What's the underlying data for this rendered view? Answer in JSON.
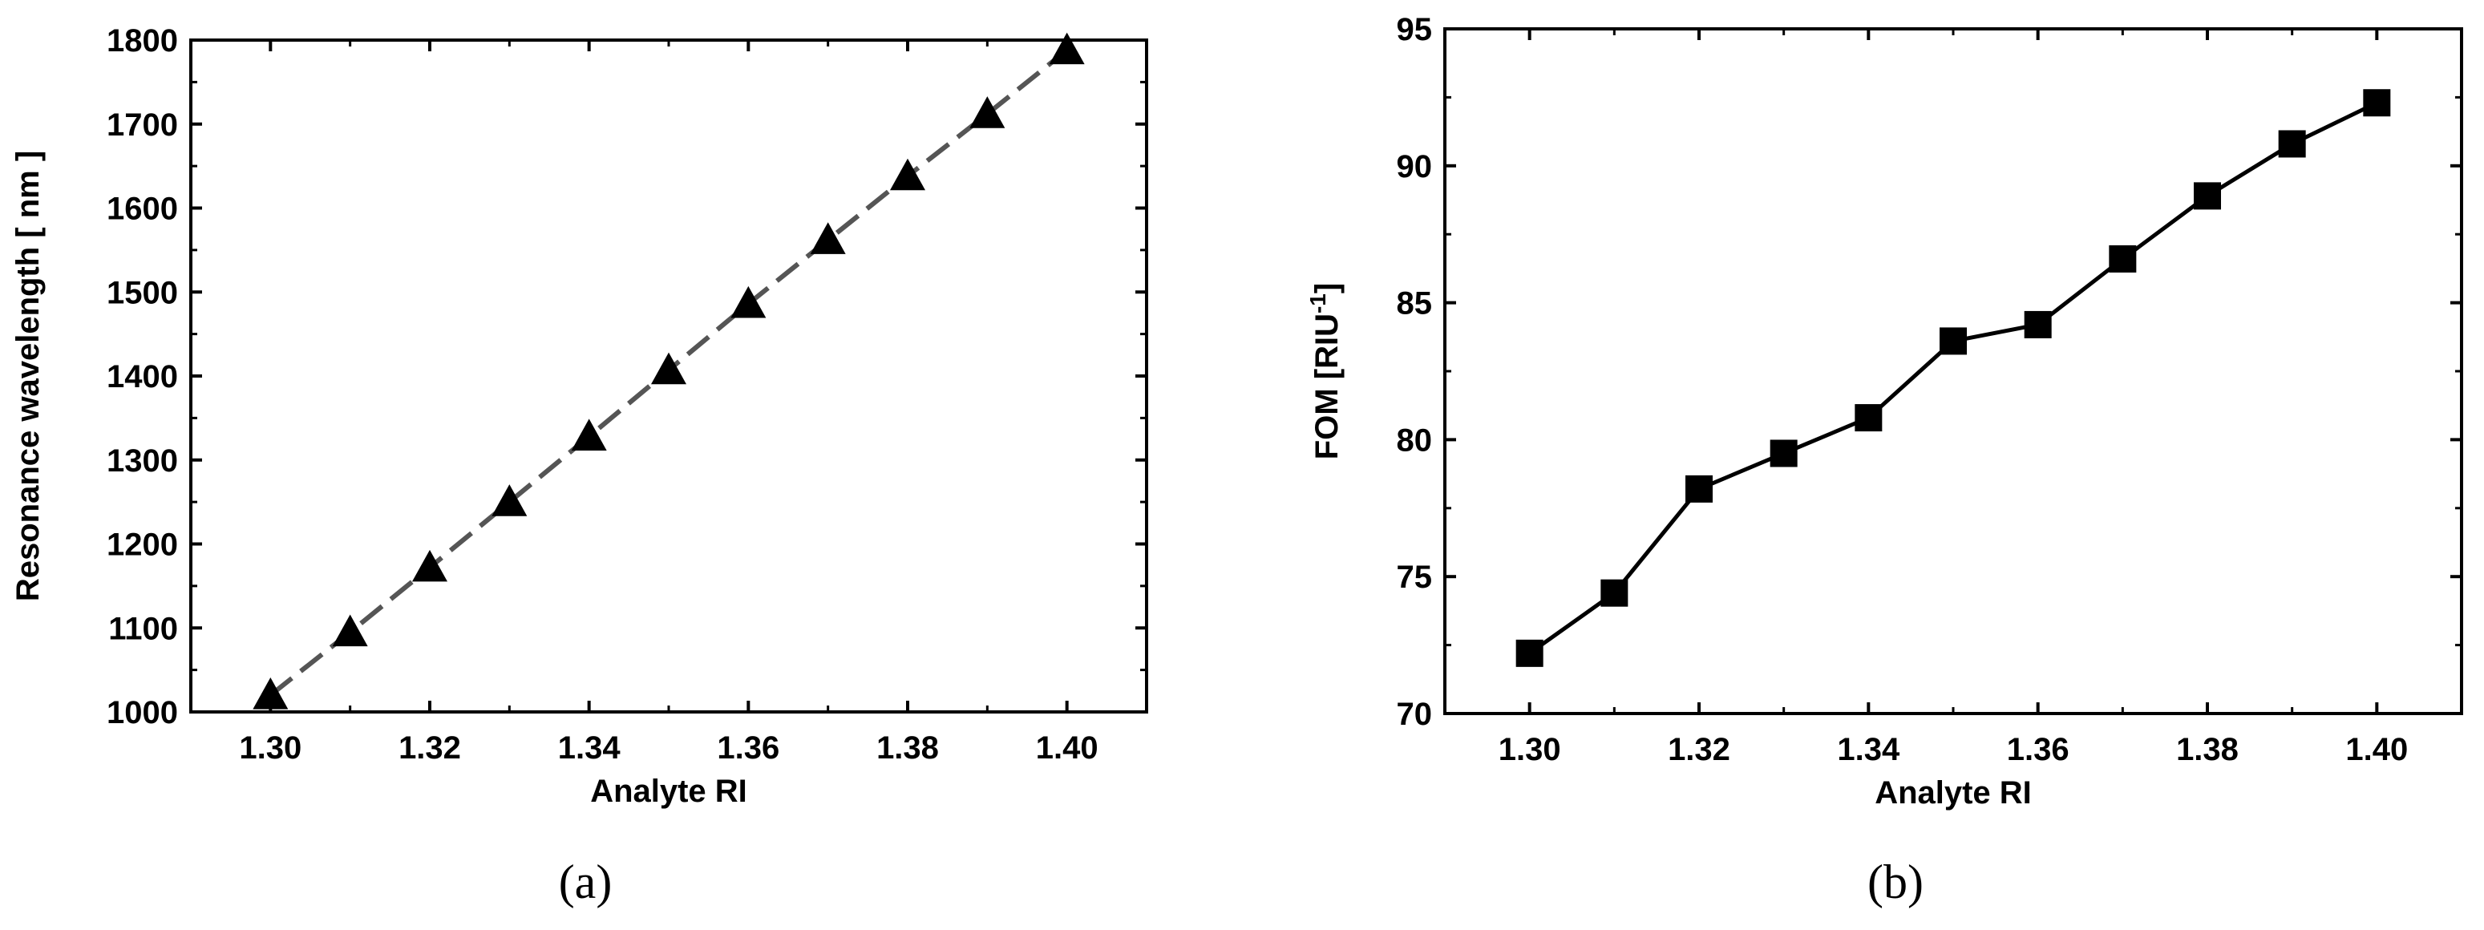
{
  "figure": {
    "panels": [
      "(a)",
      "(b)"
    ]
  },
  "chart_data": [
    {
      "type": "line",
      "xlabel": "Analyte RI",
      "ylabel": "Resonance wavelength [ nm ]",
      "xlim": [
        1.29,
        1.41
      ],
      "ylim": [
        1000,
        1800
      ],
      "xticks": [
        1.3,
        1.32,
        1.34,
        1.36,
        1.38,
        1.4
      ],
      "xtick_labels": [
        "1.30",
        "1.32",
        "1.34",
        "1.36",
        "1.38",
        "1.40"
      ],
      "yticks": [
        1000,
        1100,
        1200,
        1300,
        1400,
        1500,
        1600,
        1700,
        1800
      ],
      "ytick_labels": [
        "1000",
        "1100",
        "1200",
        "1300",
        "1400",
        "1500",
        "1600",
        "1700",
        "1800"
      ],
      "grid": false,
      "line_style": "dashed",
      "line_color": "#555555",
      "marker": "triangle",
      "marker_color": "#000000",
      "series": [
        {
          "x": [
            1.3,
            1.31,
            1.32,
            1.33,
            1.34,
            1.35,
            1.36,
            1.37,
            1.38,
            1.39,
            1.4
          ],
          "values": [
            1020,
            1095,
            1172,
            1250,
            1328,
            1407,
            1486,
            1562,
            1638,
            1712,
            1788
          ]
        }
      ]
    },
    {
      "type": "line",
      "xlabel": "Analyte RI",
      "ylabel": "FOM [RIU",
      "ylabel_sup": "-1",
      "ylabel_suffix": "]",
      "xlim": [
        1.29,
        1.41
      ],
      "ylim": [
        70,
        95
      ],
      "xticks": [
        1.3,
        1.32,
        1.34,
        1.36,
        1.38,
        1.4
      ],
      "xtick_labels": [
        "1.30",
        "1.32",
        "1.34",
        "1.36",
        "1.38",
        "1.40"
      ],
      "yticks": [
        70,
        75,
        80,
        85,
        90,
        95
      ],
      "ytick_labels": [
        "70",
        "75",
        "80",
        "85",
        "90",
        "95"
      ],
      "grid": false,
      "line_style": "solid",
      "line_color": "#000000",
      "marker": "square",
      "marker_color": "#000000",
      "series": [
        {
          "x": [
            1.3,
            1.31,
            1.32,
            1.33,
            1.34,
            1.35,
            1.36,
            1.37,
            1.38,
            1.39,
            1.4
          ],
          "values": [
            72.2,
            74.4,
            78.2,
            79.5,
            80.8,
            83.6,
            84.2,
            86.6,
            88.9,
            90.8,
            92.3
          ]
        }
      ]
    }
  ]
}
